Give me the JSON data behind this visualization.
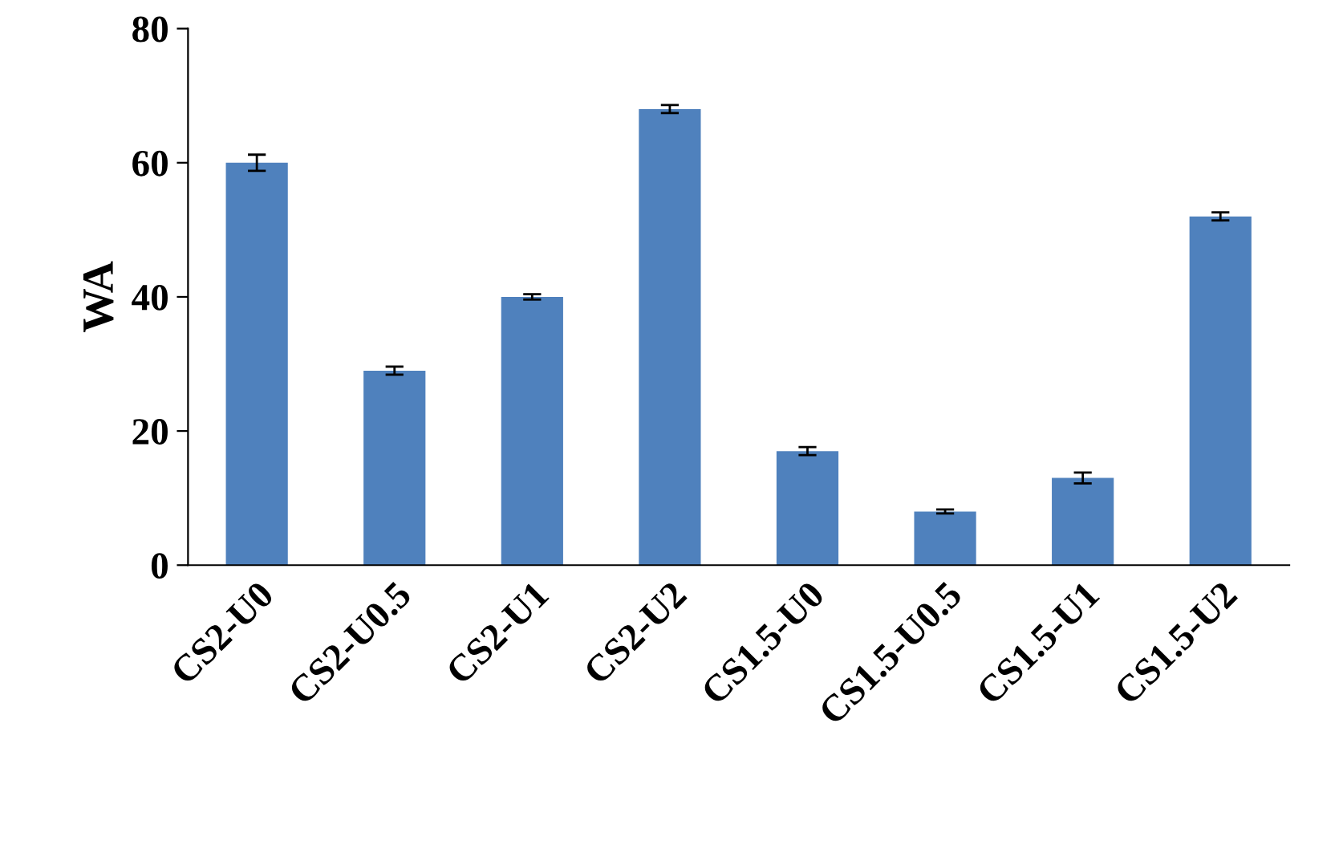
{
  "chart_data": {
    "type": "bar",
    "ylabel": "WA",
    "categories": [
      "CS2-U0",
      "CS2-U0.5",
      "CS2-U1",
      "CS2-U2",
      "CS1.5-U0",
      "CS1.5-U0.5",
      "CS1.5-U1",
      "CS1.5-U2"
    ],
    "values": [
      60,
      29,
      40,
      68,
      17,
      8,
      13,
      52
    ],
    "errors": [
      1.2,
      0.6,
      0.4,
      0.6,
      0.6,
      0.3,
      0.8,
      0.6
    ],
    "color": "#4f81bd",
    "ylim": [
      0,
      80
    ],
    "yticks": [
      0,
      20,
      40,
      60,
      80
    ],
    "grid": false,
    "legend": false
  }
}
